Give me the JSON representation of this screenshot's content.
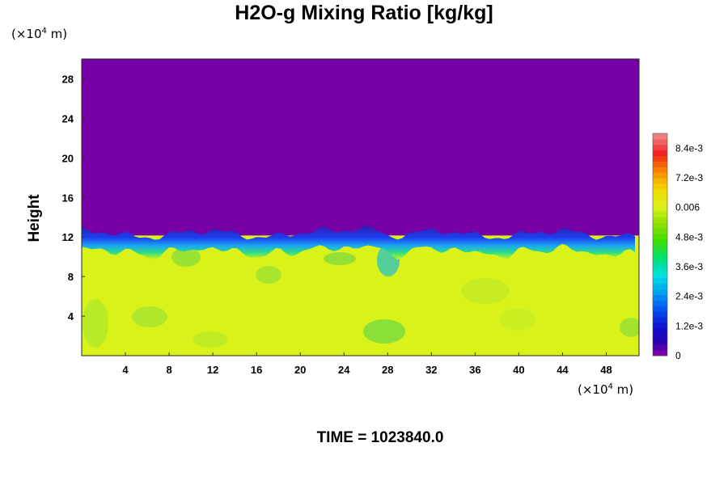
{
  "chart_data": {
    "type": "heatmap",
    "title": "H2O-g Mixing Ratio [kg/kg]",
    "xlabel": "",
    "ylabel": "Height",
    "x_unit": "(×10",
    "x_unit_exp": "4",
    "x_unit_end": " m)",
    "y_unit": "(×10",
    "y_unit_exp": "4",
    "y_unit_end": " m)",
    "xlim": [
      0,
      51
    ],
    "ylim": [
      0,
      30
    ],
    "xticks": [
      4,
      8,
      12,
      16,
      20,
      24,
      28,
      32,
      36,
      40,
      44,
      48
    ],
    "xtick_labels": [
      "4",
      "8",
      "12",
      "16",
      "20",
      "24",
      "28",
      "32",
      "36",
      "40",
      "44",
      "48"
    ],
    "yticks": [
      4,
      8,
      12,
      16,
      20,
      24,
      28
    ],
    "ytick_labels": [
      "4",
      "8",
      "12",
      "16",
      "20",
      "24",
      "28"
    ],
    "colorbar": {
      "range": [
        0,
        0.009
      ],
      "ticks": [
        0,
        0.0012,
        0.0024,
        0.0036,
        0.0048,
        0.006,
        0.0072,
        0.0084
      ],
      "tick_labels": [
        "0",
        "1.2e-3",
        "2.4e-3",
        "3.6e-3",
        "4.8e-3",
        "0.006",
        "7.2e-3",
        "8.4e-3"
      ]
    },
    "field_description_values": {
      "upper_layer_value": 0,
      "lower_layer_value_approx": 0.0062,
      "interface_height_approx": 11.5
    },
    "time_label": "TIME = 1023840.0"
  }
}
